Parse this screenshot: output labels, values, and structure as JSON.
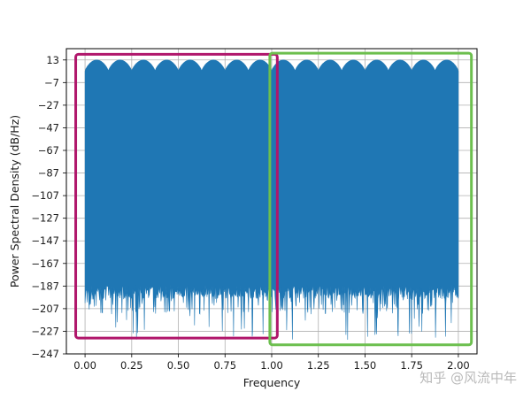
{
  "chart_data": {
    "type": "line",
    "xlabel": "Frequency",
    "ylabel": "Power Spectral Density (dB/Hz)",
    "xlim": [
      -0.1,
      2.1
    ],
    "ylim": [
      -247,
      23
    ],
    "xticks": [
      0.0,
      0.25,
      0.5,
      0.75,
      1.0,
      1.25,
      1.5,
      1.75,
      2.0
    ],
    "xtick_labels": [
      "0.00",
      "0.25",
      "0.50",
      "0.75",
      "1.00",
      "1.25",
      "1.50",
      "1.75",
      "2.00"
    ],
    "yticks": [
      13,
      -7,
      -27,
      -47,
      -67,
      -87,
      -107,
      -127,
      -147,
      -167,
      -187,
      -207,
      -227,
      -247
    ],
    "ytick_labels": [
      "13",
      "−7",
      "−27",
      "−47",
      "−67",
      "−87",
      "−107",
      "−127",
      "−147",
      "−167",
      "−187",
      "−207",
      "−227",
      "−247"
    ],
    "grid": true,
    "series": [
      {
        "color": "#1f77b4",
        "x_range": [
          0.0,
          2.0
        ],
        "upper_envelope_max": 13,
        "upper_envelope_min": 3,
        "lobes_per_unit": 8,
        "lower_envelope_typical": -192,
        "lower_spike_min": -235
      }
    ],
    "annotations": [
      {
        "shape": "rectangle",
        "color": "#b0166b",
        "x_range": [
          -0.05,
          1.03
        ],
        "y_range": [
          -233,
          18
        ]
      },
      {
        "shape": "rectangle",
        "color": "#6cbf4e",
        "x_range": [
          0.99,
          2.07
        ],
        "y_range": [
          -239,
          19
        ]
      }
    ]
  },
  "watermark": "知乎 @风流中年"
}
